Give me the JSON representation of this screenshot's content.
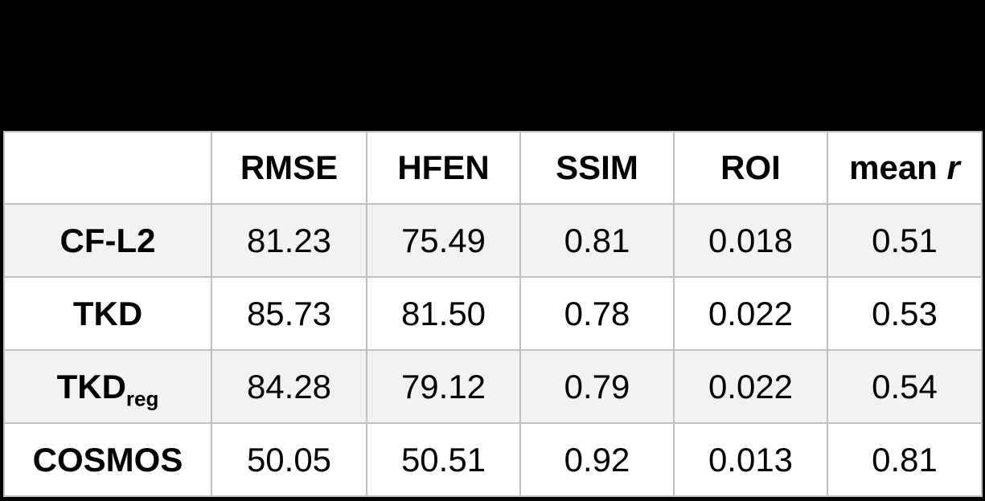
{
  "colors": {
    "background": "#000000",
    "table_background": "#ffffff",
    "stripe_row": "#f2f2f2",
    "gridline": "#bfbfbf",
    "text": "#000000"
  },
  "table": {
    "columns": [
      {
        "label": ""
      },
      {
        "label": "RMSE"
      },
      {
        "label": "HFEN"
      },
      {
        "label": "SSIM"
      },
      {
        "label": "ROI"
      },
      {
        "label": "mean",
        "italic_suffix": "r"
      }
    ],
    "rows": [
      {
        "label": "CF-L2",
        "values": [
          "81.23",
          "75.49",
          "0.81",
          "0.018",
          "0.51"
        ]
      },
      {
        "label": "TKD",
        "values": [
          "85.73",
          "81.50",
          "0.78",
          "0.022",
          "0.53"
        ]
      },
      {
        "label": "TKD",
        "label_subscript": "reg",
        "values": [
          "84.28",
          "79.12",
          "0.79",
          "0.022",
          "0.54"
        ]
      },
      {
        "label": "COSMOS",
        "values": [
          "50.05",
          "50.51",
          "0.92",
          "0.013",
          "0.81"
        ]
      }
    ]
  },
  "chart_data": {
    "type": "table",
    "columns": [
      "",
      "RMSE",
      "HFEN",
      "SSIM",
      "ROI",
      "mean r"
    ],
    "rows": [
      [
        "CF-L2",
        81.23,
        75.49,
        0.81,
        0.018,
        0.51
      ],
      [
        "TKD",
        85.73,
        81.5,
        0.78,
        0.022,
        0.53
      ],
      [
        "TKD_reg",
        84.28,
        79.12,
        0.79,
        0.022,
        0.54
      ],
      [
        "COSMOS",
        50.05,
        50.51,
        0.92,
        0.013,
        0.81
      ]
    ]
  }
}
